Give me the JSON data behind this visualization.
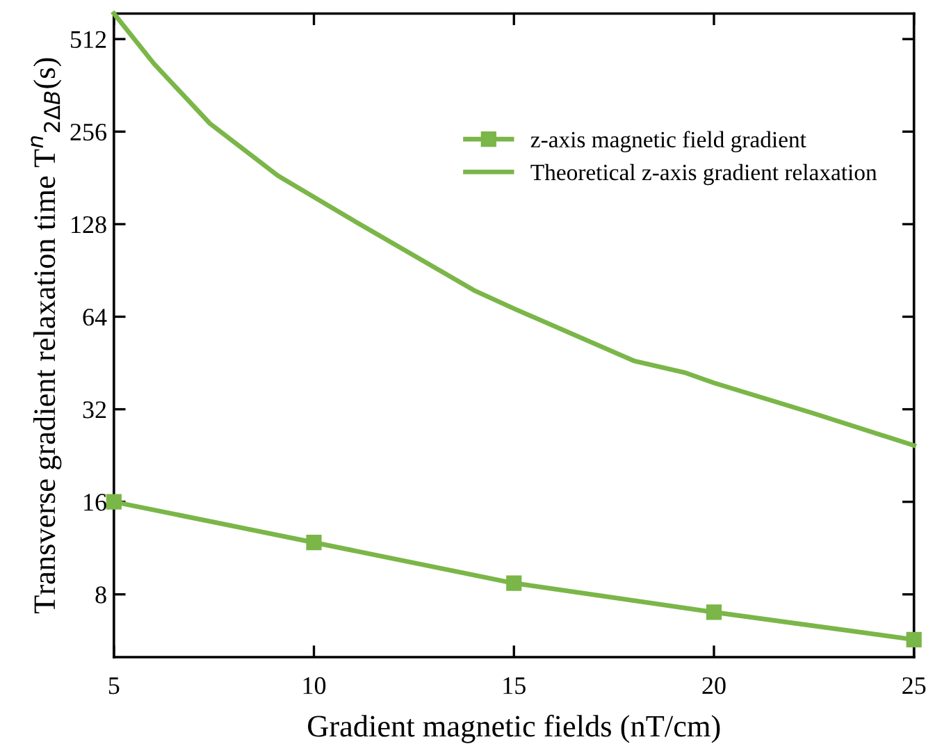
{
  "chart_data": {
    "type": "line",
    "xlabel": "Gradient magnetic fields (nT/cm)",
    "ylabel": "Transverse gradient relaxation time T$^{n}$$_{2ΔB}$(s)",
    "series": [
      {
        "name": "z-axis magnetic field gradient",
        "color": "#7ab648",
        "marker": "square",
        "x": [
          5,
          10,
          15,
          20,
          25
        ],
        "values": [
          16.0,
          11.8,
          8.7,
          7.0,
          5.7
        ]
      },
      {
        "name": "Theoretical z-axis gradient relaxation",
        "color": "#7ab648",
        "marker": "none",
        "x": [
          5,
          6,
          7.4,
          9.1,
          10.8,
          14,
          15,
          18,
          19.3,
          20,
          22.5,
          25
        ],
        "values": [
          620,
          426,
          272,
          184,
          136,
          78,
          68,
          46,
          42,
          39,
          31,
          24.4
        ]
      }
    ],
    "log": "y",
    "xlim": [
      5,
      25
    ],
    "xticks": [
      5,
      10,
      15,
      20,
      25
    ],
    "ylim": [
      5,
      620
    ],
    "yticks": [
      8,
      16,
      32,
      64,
      128,
      256,
      512
    ],
    "grid": false,
    "legend": "top right"
  }
}
